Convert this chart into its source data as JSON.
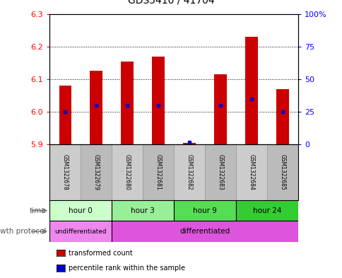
{
  "title": "GDS5410 / 41704",
  "samples": [
    "GSM1322678",
    "GSM1322679",
    "GSM1322680",
    "GSM1322681",
    "GSM1322682",
    "GSM1322683",
    "GSM1322684",
    "GSM1322685"
  ],
  "transformed_count": [
    6.08,
    6.125,
    6.155,
    6.17,
    5.905,
    6.115,
    6.23,
    6.07
  ],
  "percentile_rank": [
    25,
    30,
    30,
    30,
    2,
    30,
    35,
    25
  ],
  "ylim_left": [
    5.9,
    6.3
  ],
  "ylim_right": [
    0,
    100
  ],
  "yticks_left": [
    5.9,
    6.0,
    6.1,
    6.2,
    6.3
  ],
  "yticks_right": [
    0,
    25,
    50,
    75,
    100
  ],
  "ytick_labels_right": [
    "0",
    "25",
    "50",
    "75",
    "100%"
  ],
  "bar_bottom": 5.9,
  "bar_color": "#cc0000",
  "percentile_color": "#0000cc",
  "time_groups": [
    {
      "label": "hour 0",
      "start": 0,
      "end": 2,
      "color": "#ccffcc"
    },
    {
      "label": "hour 3",
      "start": 2,
      "end": 4,
      "color": "#99ee99"
    },
    {
      "label": "hour 9",
      "start": 4,
      "end": 6,
      "color": "#55dd55"
    },
    {
      "label": "hour 24",
      "start": 6,
      "end": 8,
      "color": "#33cc33"
    }
  ],
  "growth_protocol_groups": [
    {
      "label": "undifferentiated",
      "start": 0,
      "end": 2,
      "color": "#ee88ee"
    },
    {
      "label": "differentiated",
      "start": 2,
      "end": 8,
      "color": "#dd55dd"
    }
  ],
  "time_label": "time",
  "growth_label": "growth protocol",
  "legend_items": [
    {
      "label": "transformed count",
      "color": "#cc0000"
    },
    {
      "label": "percentile rank within the sample",
      "color": "#0000cc"
    }
  ],
  "sample_box_color_even": "#cccccc",
  "sample_box_color_odd": "#bbbbbb",
  "bar_width": 0.4
}
